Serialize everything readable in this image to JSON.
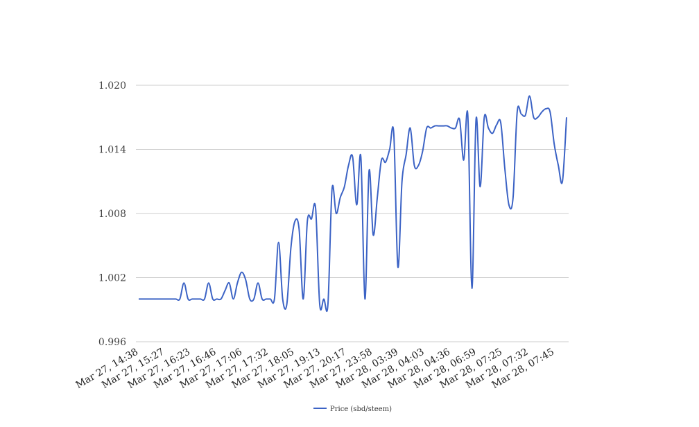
{
  "chart_data": {
    "type": "line",
    "title": "",
    "xlabel": "",
    "ylabel": "",
    "ylim": [
      0.996,
      1.02
    ],
    "y_ticks": [
      "0.996",
      "1.002",
      "1.008",
      "1.014",
      "1.020"
    ],
    "y_tick_values": [
      0.996,
      1.002,
      1.008,
      1.014,
      1.02
    ],
    "x_tick_labels": [
      "Mar 27, 14:38",
      "Mar 27, 15:27",
      "Mar 27, 16:23",
      "Mar 27, 16:46",
      "Mar 27, 17:06",
      "Mar 27, 17:32",
      "Mar 27, 18:05",
      "Mar 27, 19:13",
      "Mar 27, 20:17",
      "Mar 27, 23:58",
      "Mar 28, 03:39",
      "Mar 28, 04:03",
      "Mar 28, 04:36",
      "Mar 28, 06:59",
      "Mar 28, 07:25",
      "Mar 28, 07:32",
      "Mar 28, 07:45"
    ],
    "grid": true,
    "legend_position": "bottom",
    "series": [
      {
        "name": "Price (sbd/steem)",
        "color": "#3c63c5",
        "values": [
          1.0,
          1.0,
          1.0,
          1.0,
          1.0,
          1.0,
          1.0,
          1.0,
          1.0,
          1.0,
          1.0,
          1.0015,
          1.0,
          1.0,
          1.0,
          1.0,
          1.0,
          1.0015,
          1.0,
          1.0,
          1.0,
          1.0008,
          1.0015,
          1.0,
          1.0015,
          1.0025,
          1.0018,
          1.0,
          1.0,
          1.0015,
          1.0,
          1.0,
          1.0,
          1.0,
          1.0053,
          1.0,
          0.9995,
          1.0048,
          1.0073,
          1.0065,
          1.0,
          1.0073,
          1.0075,
          1.0085,
          0.9995,
          1.0,
          0.9995,
          1.0103,
          1.008,
          1.0095,
          1.0105,
          1.0125,
          1.0133,
          1.0088,
          1.0133,
          1.0,
          1.012,
          1.006,
          1.0095,
          1.013,
          1.0128,
          1.014,
          1.0155,
          1.003,
          1.011,
          1.0135,
          1.016,
          1.0125,
          1.0125,
          1.0138,
          1.016,
          1.016,
          1.0162,
          1.0162,
          1.0162,
          1.0162,
          1.016,
          1.016,
          1.0168,
          1.013,
          1.0172,
          1.001,
          1.0168,
          1.0105,
          1.017,
          1.016,
          1.0155,
          1.0163,
          1.0165,
          1.0122,
          1.0088,
          1.0095,
          1.0175,
          1.0173,
          1.0172,
          1.019,
          1.017,
          1.017,
          1.0175,
          1.0178,
          1.0175,
          1.0145,
          1.0125,
          1.011,
          1.017
        ]
      }
    ]
  }
}
